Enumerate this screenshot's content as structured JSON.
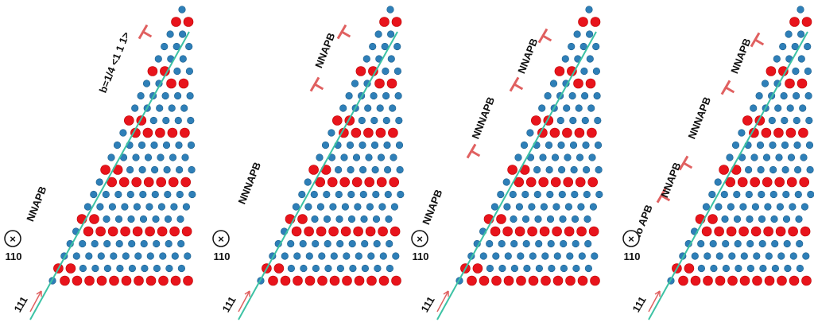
{
  "panels": [
    {
      "labels": [
        "b=1/4 <1 1 1>",
        "NNAPB"
      ],
      "zone_axis": "110",
      "direction": "111"
    },
    {
      "labels": [
        "NNAPB",
        "NNNAPB"
      ],
      "zone_axis": "110",
      "direction": "111"
    },
    {
      "labels": [
        "NNAPB",
        "NNNAPB",
        "NNAPB"
      ],
      "zone_axis": "110",
      "direction": "111"
    },
    {
      "labels": [
        "NNAPB",
        "NNNAPB",
        "NNAPB",
        "No APB"
      ],
      "zone_axis": "110",
      "direction": "111"
    }
  ]
}
